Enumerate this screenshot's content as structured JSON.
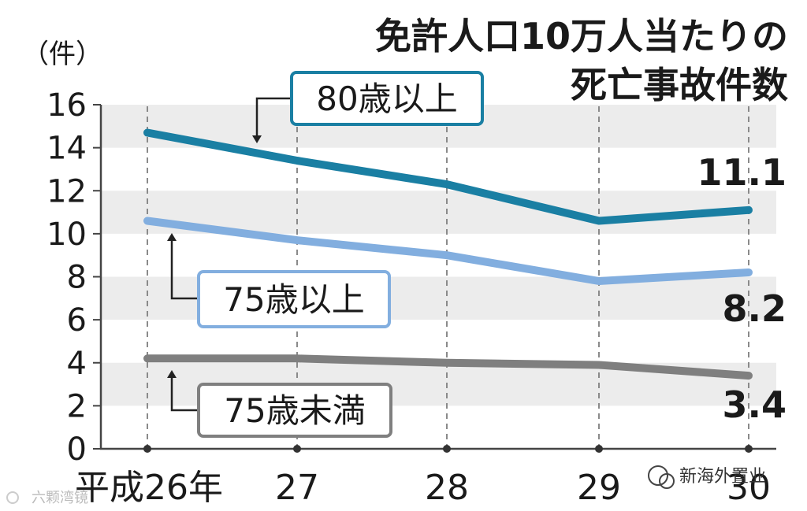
{
  "chart_data": {
    "type": "line",
    "title_lines": [
      "免許人口10万人当たりの",
      "死亡事故件数"
    ],
    "unit_label": "（件）",
    "ylim": [
      0,
      16
    ],
    "yticks": [
      {
        "value": 0,
        "label": "0"
      },
      {
        "value": 2,
        "label": "2"
      },
      {
        "value": 4,
        "label": "4"
      },
      {
        "value": 6,
        "label": "6"
      },
      {
        "value": 8,
        "label": "8"
      },
      {
        "value": 10,
        "label": "10"
      },
      {
        "value": 12,
        "label": "12"
      },
      {
        "value": 14,
        "label": "14"
      },
      {
        "value": 16,
        "label": "16"
      }
    ],
    "categories": [
      "平成26年",
      "27",
      "28",
      "29",
      "30"
    ],
    "series": [
      {
        "name": "80歳以上",
        "color": "#1a7fa3",
        "values": [
          14.7,
          13.4,
          12.3,
          10.6,
          11.1
        ],
        "end_label": "11.1"
      },
      {
        "name": "75歳以上",
        "color": "#82aedf",
        "values": [
          10.6,
          9.7,
          9.0,
          7.8,
          8.2
        ],
        "end_label": "8.2"
      },
      {
        "name": "75歳未満",
        "color": "#7f7f7f",
        "values": [
          4.2,
          4.2,
          4.0,
          3.9,
          3.4
        ],
        "end_label": "3.4"
      }
    ],
    "bands": [
      [
        2,
        4
      ],
      [
        6,
        8
      ],
      [
        10,
        12
      ],
      [
        14,
        16
      ]
    ],
    "grid": "vertical dashed at categories"
  },
  "watermark": {
    "right_text": "新海外置业",
    "left_text": "六颗湾镜"
  },
  "colors": {
    "band": "#ececec",
    "axis": "#444444",
    "grid": "#8a8a8a"
  }
}
